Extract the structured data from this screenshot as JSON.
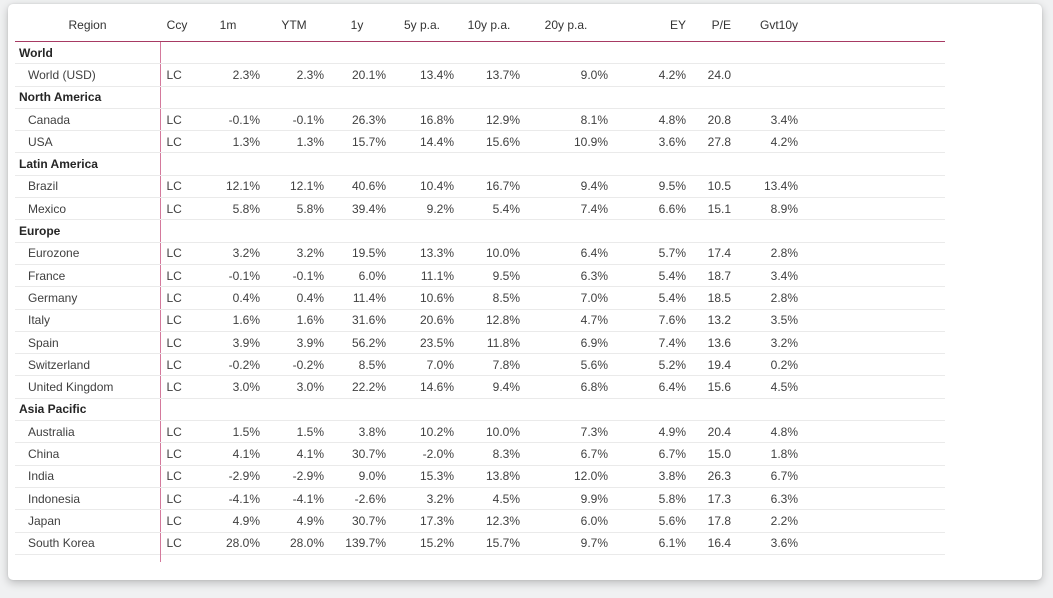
{
  "colors": {
    "header_rule": "#a73a63",
    "column_rule": "#d4799c",
    "section_rule": "#b5b5b5",
    "row_rule": "#eaeaea",
    "card_background": "#ffffff",
    "page_background": "#f0f1f2"
  },
  "chart_data": {
    "type": "table",
    "title": "",
    "columns": [
      "Region",
      "Ccy",
      "1m",
      "YTM",
      "1y",
      "5y p.a.",
      "10y p.a.",
      "20y p.a.",
      "EY",
      "P/E",
      "Gvt10y"
    ],
    "layout_hints": {
      "grid": "horizontal rules between rows; darker rule above each section; crimson rule under header; pink vertical rule after Region column",
      "numeric_alignment": "right",
      "header_position": "top"
    },
    "sections": [
      {
        "name": "World",
        "rows": [
          {
            "region": "World (USD)",
            "values": [
              "LC",
              "2.3%",
              "2.3%",
              "20.1%",
              "13.4%",
              "13.7%",
              "9.0%",
              "4.2%",
              "24.0",
              ""
            ]
          }
        ]
      },
      {
        "name": "North America",
        "rows": [
          {
            "region": "Canada",
            "values": [
              "LC",
              "-0.1%",
              "-0.1%",
              "26.3%",
              "16.8%",
              "12.9%",
              "8.1%",
              "4.8%",
              "20.8",
              "3.4%"
            ]
          },
          {
            "region": "USA",
            "values": [
              "LC",
              "1.3%",
              "1.3%",
              "15.7%",
              "14.4%",
              "15.6%",
              "10.9%",
              "3.6%",
              "27.8",
              "4.2%"
            ]
          }
        ]
      },
      {
        "name": "Latin America",
        "rows": [
          {
            "region": "Brazil",
            "values": [
              "LC",
              "12.1%",
              "12.1%",
              "40.6%",
              "10.4%",
              "16.7%",
              "9.4%",
              "9.5%",
              "10.5",
              "13.4%"
            ]
          },
          {
            "region": "Mexico",
            "values": [
              "LC",
              "5.8%",
              "5.8%",
              "39.4%",
              "9.2%",
              "5.4%",
              "7.4%",
              "6.6%",
              "15.1",
              "8.9%"
            ]
          }
        ]
      },
      {
        "name": "Europe",
        "rows": [
          {
            "region": "Eurozone",
            "values": [
              "LC",
              "3.2%",
              "3.2%",
              "19.5%",
              "13.3%",
              "10.0%",
              "6.4%",
              "5.7%",
              "17.4",
              "2.8%"
            ]
          },
          {
            "region": "France",
            "values": [
              "LC",
              "-0.1%",
              "-0.1%",
              "6.0%",
              "11.1%",
              "9.5%",
              "6.3%",
              "5.4%",
              "18.7",
              "3.4%"
            ]
          },
          {
            "region": "Germany",
            "values": [
              "LC",
              "0.4%",
              "0.4%",
              "11.4%",
              "10.6%",
              "8.5%",
              "7.0%",
              "5.4%",
              "18.5",
              "2.8%"
            ]
          },
          {
            "region": "Italy",
            "values": [
              "LC",
              "1.6%",
              "1.6%",
              "31.6%",
              "20.6%",
              "12.8%",
              "4.7%",
              "7.6%",
              "13.2",
              "3.5%"
            ]
          },
          {
            "region": "Spain",
            "values": [
              "LC",
              "3.9%",
              "3.9%",
              "56.2%",
              "23.5%",
              "11.8%",
              "6.9%",
              "7.4%",
              "13.6",
              "3.2%"
            ]
          },
          {
            "region": "Switzerland",
            "values": [
              "LC",
              "-0.2%",
              "-0.2%",
              "8.5%",
              "7.0%",
              "7.8%",
              "5.6%",
              "5.2%",
              "19.4",
              "0.2%"
            ]
          },
          {
            "region": "United Kingdom",
            "values": [
              "LC",
              "3.0%",
              "3.0%",
              "22.2%",
              "14.6%",
              "9.4%",
              "6.8%",
              "6.4%",
              "15.6",
              "4.5%"
            ]
          }
        ]
      },
      {
        "name": "Asia Pacific",
        "rows": [
          {
            "region": "Australia",
            "values": [
              "LC",
              "1.5%",
              "1.5%",
              "3.8%",
              "10.2%",
              "10.0%",
              "7.3%",
              "4.9%",
              "20.4",
              "4.8%"
            ]
          },
          {
            "region": "China",
            "values": [
              "LC",
              "4.1%",
              "4.1%",
              "30.7%",
              "-2.0%",
              "8.3%",
              "6.7%",
              "6.7%",
              "15.0",
              "1.8%"
            ]
          },
          {
            "region": "India",
            "values": [
              "LC",
              "-2.9%",
              "-2.9%",
              "9.0%",
              "15.3%",
              "13.8%",
              "12.0%",
              "3.8%",
              "26.3",
              "6.7%"
            ]
          },
          {
            "region": "Indonesia",
            "values": [
              "LC",
              "-4.1%",
              "-4.1%",
              "-2.6%",
              "3.2%",
              "4.5%",
              "9.9%",
              "5.8%",
              "17.3",
              "6.3%"
            ]
          },
          {
            "region": "Japan",
            "values": [
              "LC",
              "4.9%",
              "4.9%",
              "30.7%",
              "17.3%",
              "12.3%",
              "6.0%",
              "5.6%",
              "17.8",
              "2.2%"
            ]
          },
          {
            "region": "South Korea",
            "values": [
              "LC",
              "28.0%",
              "28.0%",
              "139.7%",
              "15.2%",
              "15.7%",
              "9.7%",
              "6.1%",
              "16.4",
              "3.6%"
            ]
          }
        ]
      }
    ]
  }
}
